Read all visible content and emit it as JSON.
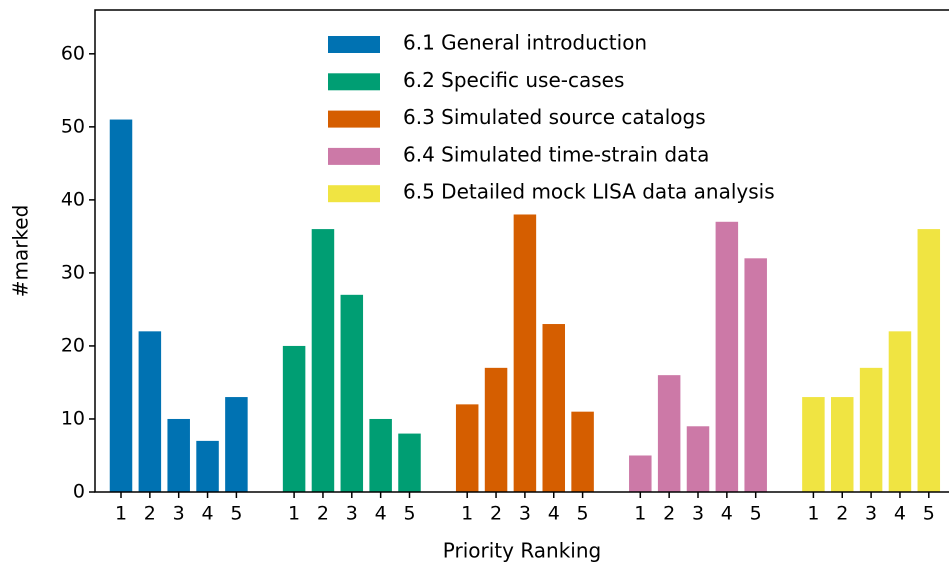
{
  "chart_data": {
    "type": "grouped_bar",
    "xlabel": "Priority Ranking",
    "ylabel": "#marked",
    "categories": [
      "1",
      "2",
      "3",
      "4",
      "5"
    ],
    "series": [
      {
        "name": "6.1 General introduction",
        "color": "#0072b2",
        "values": [
          51,
          22,
          10,
          7,
          13
        ]
      },
      {
        "name": "6.2 Specific use-cases",
        "color": "#009e73",
        "values": [
          20,
          36,
          27,
          10,
          8
        ]
      },
      {
        "name": "6.3 Simulated source catalogs",
        "color": "#d55e00",
        "values": [
          12,
          17,
          38,
          23,
          11
        ]
      },
      {
        "name": "6.4 Simulated time-strain data",
        "color": "#cc79a7",
        "values": [
          5,
          16,
          9,
          37,
          32
        ]
      },
      {
        "name": "6.5 Detailed mock LISA data analysis",
        "color": "#f0e442",
        "values": [
          13,
          13,
          17,
          22,
          36
        ]
      }
    ],
    "ylim": [
      0,
      66
    ],
    "yticks": [
      0,
      10,
      20,
      30,
      40,
      50,
      60
    ],
    "legend": "upper center"
  }
}
